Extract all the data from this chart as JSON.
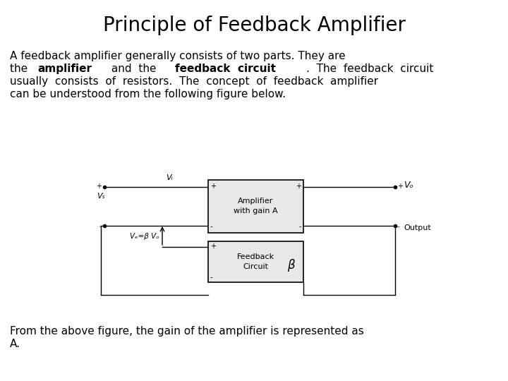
{
  "title": "Principle of Feedback Amplifier",
  "title_fontsize": 20,
  "body_fontsize": 11,
  "diagram_fontsize": 8,
  "background_color": "#ffffff",
  "text_color": "#000000",
  "line1": "A feedback amplifier generally consists of two parts. They are",
  "line2_pre": "the ",
  "line2_bold1": "amplifier",
  "line2_mid": " and  the ",
  "line2_bold2": "feedback  circuit",
  "line2_post": ".  The  feedback  circuit",
  "line3": "usually  consists  of  resistors.  The  concept  of  feedback  amplifier",
  "line4": "can be understood from the following figure below.",
  "para2_line1": "From the above figure, the gain of the amplifier is represented as",
  "para2_line2": "A.",
  "amp_label1": "Amplifier",
  "amp_label2": "with gain A",
  "fb_label1": "Feedback",
  "fb_label2": "Circuit",
  "beta": "β",
  "vs": "Vₛ",
  "vi": "Vᵢ",
  "vf": "Vₑ=β Vₒ",
  "vo": "Vₒ",
  "output": "Output",
  "lw": 1.0
}
